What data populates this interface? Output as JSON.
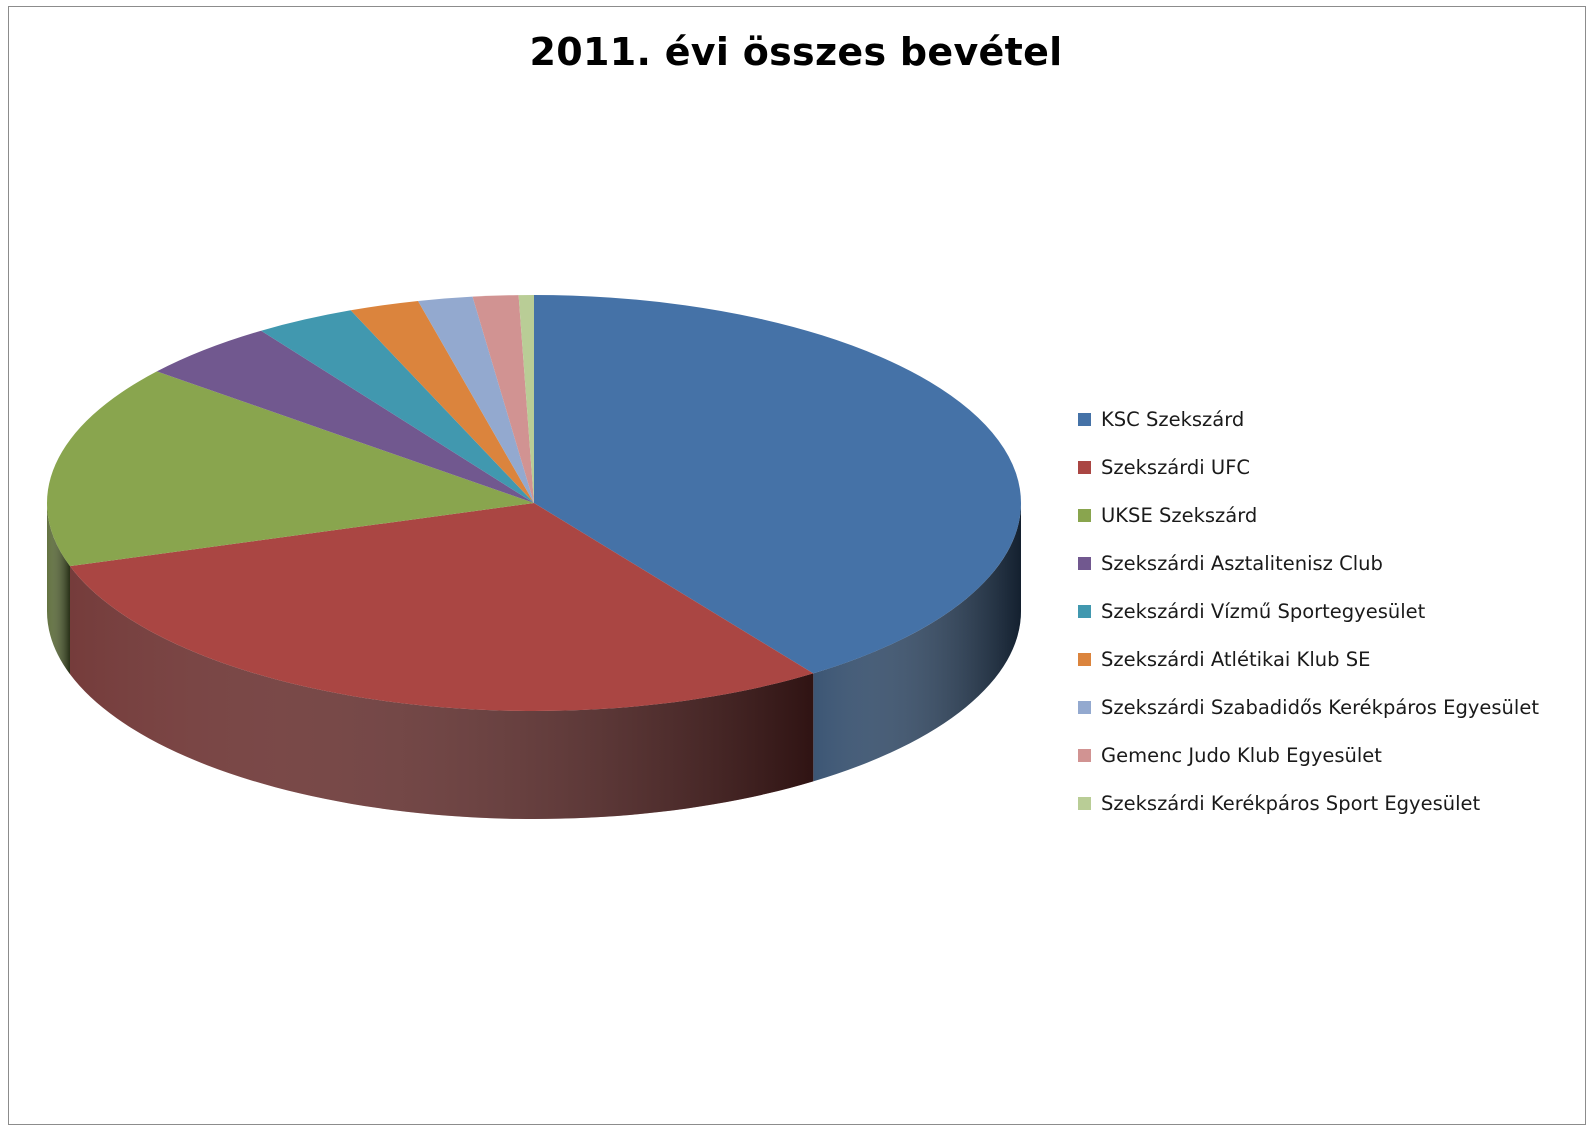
{
  "chart_data": {
    "type": "pie",
    "title": "2011. évi összes bevétel",
    "legend_position": "right",
    "categories": [
      "KSC Szekszárd",
      "Szekszárdi UFC",
      "UKSE Szekszárd",
      "Szekszárdi Asztalitenisz Club",
      "Szekszárdi Vízmű Sportegyesület",
      "Szekszárdi Atlétikai Klub SE",
      "Szekszárdi Szabadidős Kerékpáros Egyesület",
      "Gemenc Judo Klub Egyesület",
      "Szekszárdi Kerékpáros Sport Egyesület"
    ],
    "values": [
      40,
      29.6,
      15.7,
      4.6,
      3.3,
      2.3,
      1.8,
      1.5,
      0.5
    ],
    "colors": [
      "#4572a7",
      "#aa4643",
      "#89a54e",
      "#71588f",
      "#4198af",
      "#db843d",
      "#93a9cf",
      "#d19392",
      "#b9cd96"
    ]
  }
}
